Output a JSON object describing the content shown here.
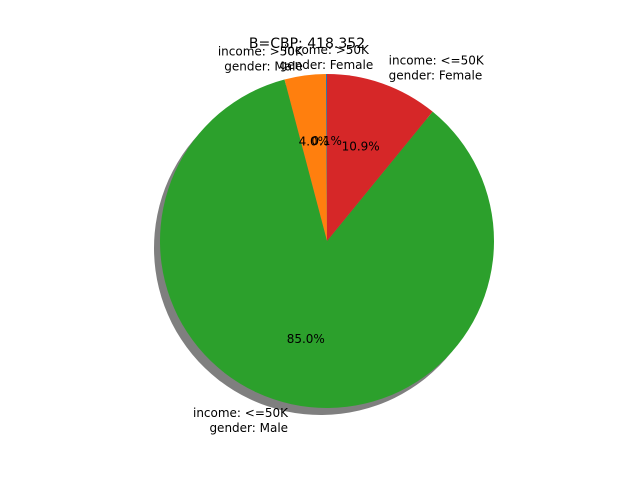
{
  "chart_data": {
    "type": "pie",
    "title": "B=CBP: 418.352",
    "start_angle_deg": 90,
    "direction": "counterclockwise",
    "shadow": true,
    "slices": [
      {
        "label": [
          "income: >50K",
          "gender: Female"
        ],
        "value": 0.1,
        "pct_text": "0.1%",
        "color": "#1f77b4"
      },
      {
        "label": [
          "income: >50K",
          "gender: Male"
        ],
        "value": 4.0,
        "pct_text": "4.0%",
        "color": "#ff7f0e"
      },
      {
        "label": [
          "income: <=50K",
          "gender: Male"
        ],
        "value": 85.0,
        "pct_text": "85.0%",
        "color": "#2ca02c"
      },
      {
        "label": [
          "income: <=50K",
          "gender: Female"
        ],
        "value": 10.9,
        "pct_text": "10.9%",
        "color": "#d62728"
      }
    ]
  }
}
